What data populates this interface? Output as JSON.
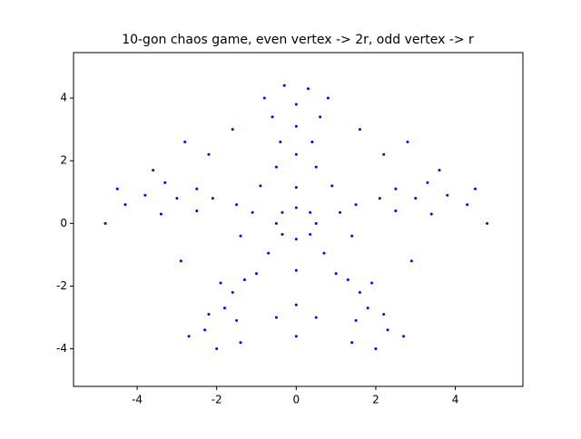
{
  "chart_data": {
    "type": "scatter",
    "title": "10-gon chaos game, even vertex -> 2r, odd vertex -> r",
    "xlim": [
      -5.6,
      5.7
    ],
    "ylim": [
      -5.2,
      5.45
    ],
    "xticks": [
      -4,
      -2,
      0,
      2,
      4
    ],
    "yticks": [
      -4,
      -2,
      0,
      2,
      4
    ],
    "color": "#0000ff",
    "x": [
      0.5,
      -0.5,
      0,
      0,
      0.35,
      -0.35,
      0.35,
      -0.35,
      1.1,
      -1.1,
      0,
      0.7,
      -0.7,
      0.9,
      -0.9,
      1.4,
      -1.4,
      0,
      1.5,
      -1.5,
      0.5,
      -0.5,
      1.0,
      -1.0,
      0,
      0.4,
      -0.4,
      0,
      0.6,
      -0.6,
      0,
      0.3,
      -0.3,
      0.8,
      -0.8,
      2.1,
      2.5,
      2.5,
      3.0,
      3.3,
      3.4,
      3.8,
      4.3,
      4.5,
      3.6,
      -2.1,
      -2.5,
      -2.5,
      -3.0,
      -3.3,
      -3.4,
      -3.8,
      -4.3,
      -4.5,
      -3.6,
      1.3,
      1.6,
      1.9,
      1.8,
      2.2,
      1.5,
      2.3,
      2.7,
      2.0,
      1.4,
      -1.3,
      -1.6,
      -1.9,
      -1.8,
      -2.2,
      -1.5,
      -2.3,
      -2.7,
      -2.0,
      -1.4,
      2.2,
      -2.2,
      2.8,
      -2.8,
      1.6,
      -1.6,
      2.9,
      -2.9,
      0,
      0.5,
      -0.5,
      0,
      4.8,
      -4.8
    ],
    "y": [
      0,
      0,
      0.5,
      -0.5,
      0.35,
      0.35,
      -0.35,
      -0.35,
      0.35,
      0.35,
      1.15,
      -0.95,
      -0.95,
      1.2,
      1.2,
      -0.4,
      -0.4,
      -1.5,
      0.6,
      0.6,
      1.8,
      1.8,
      -1.6,
      -1.6,
      2.2,
      2.6,
      2.6,
      3.1,
      3.4,
      3.4,
      3.8,
      4.3,
      4.4,
      4.0,
      4.0,
      0.8,
      1.1,
      0.4,
      0.8,
      1.3,
      0.3,
      0.9,
      0.6,
      1.1,
      1.7,
      0.8,
      1.1,
      0.4,
      0.8,
      1.3,
      0.3,
      0.9,
      0.6,
      1.1,
      1.7,
      -1.8,
      -2.2,
      -1.9,
      -2.7,
      -2.9,
      -3.1,
      -3.4,
      -3.6,
      -4.0,
      -3.8,
      -1.8,
      -2.2,
      -1.9,
      -2.7,
      -2.9,
      -3.1,
      -3.4,
      -3.6,
      -4.0,
      -3.8,
      2.2,
      2.2,
      2.6,
      2.6,
      3.0,
      3.0,
      -1.2,
      -1.2,
      -2.6,
      -3.0,
      -3.0,
      -3.6,
      0,
      0
    ]
  }
}
